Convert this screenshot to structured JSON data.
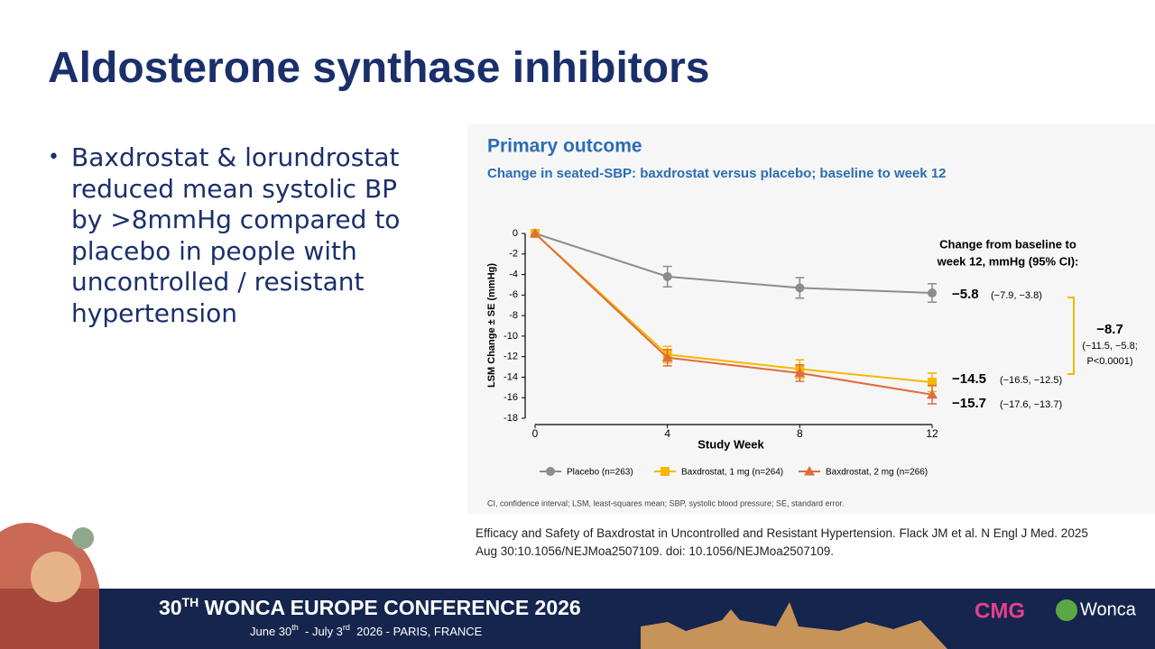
{
  "slide": {
    "title": "Aldosterone synthase inhibitors",
    "bullets": [
      "Baxdrostat & lorundrostat reduced mean systolic BP by >8mmHg compared to placebo in people with uncontrolled / resistant hypertension"
    ],
    "citation": "Efficacy and Safety of Baxdrostat in Uncontrolled and Resistant Hypertension. Flack JM et al. N Engl J Med. 2025 Aug 30:10.1056/NEJMoa2507109. doi: 10.1056/NEJMoa2507109.",
    "footer": {
      "conference": [
        "30",
        "TH",
        " WONCA EUROPE CONFERENCE 2026"
      ],
      "dates": [
        "June 30",
        "th",
        "  - July 3",
        "rd",
        "  2026 - PARIS, FRANCE"
      ],
      "logos": [
        "CMG",
        "Wonca"
      ]
    }
  },
  "chart_data": {
    "type": "line",
    "title": "Primary outcome",
    "subtitle": "Change in seated-SBP: baxdrostat versus placebo; baseline to week 12",
    "x_label": "Study Week",
    "y_label": "LSM Change ± SE (mmHg)",
    "x": [
      0,
      4,
      8,
      12
    ],
    "xlim": [
      0,
      12
    ],
    "xticks": [
      0,
      4,
      8,
      12
    ],
    "ylim": [
      -18,
      0
    ],
    "yticks": [
      0,
      -2,
      -4,
      -6,
      -8,
      -10,
      -12,
      -14,
      -16,
      -18
    ],
    "series": [
      {
        "name": "Placebo (n=263)",
        "color": "#8c8c8c",
        "marker": "circle",
        "values": [
          0,
          -4.2,
          -5.3,
          -5.8
        ],
        "errors": [
          null,
          1,
          1,
          0.9
        ]
      },
      {
        "name": "Baxdrostat, 1 mg (n=264)",
        "color": "#f5b800",
        "marker": "square",
        "values": [
          0,
          -11.8,
          -13.2,
          -14.5
        ],
        "errors": [
          null,
          0.8,
          0.9,
          0.9
        ]
      },
      {
        "name": "Baxdrostat, 2 mg (n=266)",
        "color": "#e06c3c",
        "marker": "triangle",
        "values": [
          0,
          -12.1,
          -13.6,
          -15.7
        ],
        "errors": [
          null,
          0.8,
          0.8,
          0.9
        ]
      }
    ],
    "annotation_title": [
      "Change from baseline to",
      "week 12, mmHg (95% CI):"
    ],
    "end_labels": [
      {
        "value": "−5.8",
        "ci": "(−7.9, −3.8)"
      },
      {
        "value": "−14.5",
        "ci": "(−16.5, −12.5)"
      },
      {
        "value": "−15.7",
        "ci": "(−17.6, −13.7)"
      }
    ],
    "difference": {
      "value": "−8.7",
      "details": [
        "(−11.5, −5.8;",
        "P<0.0001)"
      ]
    },
    "footnote": "CI, confidence interval; LSM, least-squares mean; SBP, systolic blood pressure; SE, standard error."
  }
}
